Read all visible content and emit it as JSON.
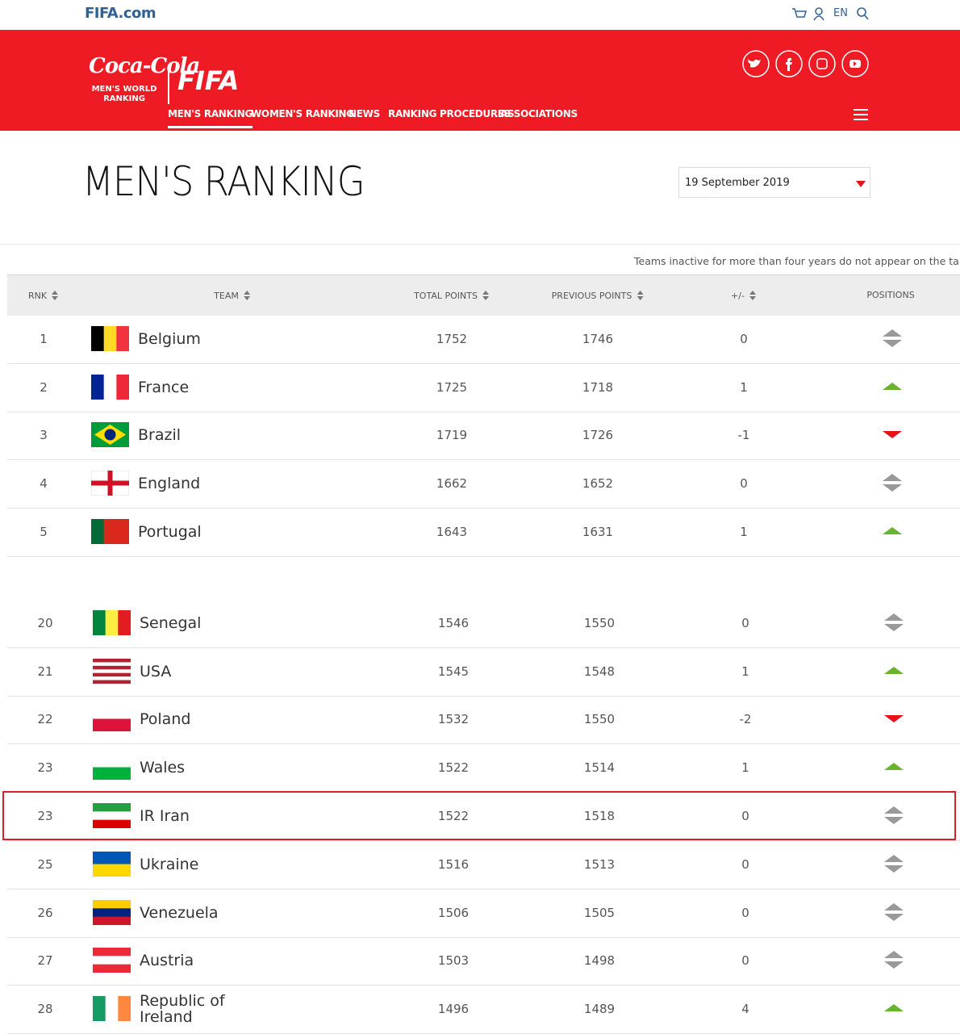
{
  "header": {
    "site": "FIFA.com",
    "language": "EN"
  },
  "banner": {
    "sponsor": "Coca-Cola",
    "sponsor_sub": "MEN'S WORLD RANKING",
    "brand": "FIFA",
    "nav": [
      "MEN'S RANKING",
      "WOMEN'S RANKING",
      "NEWS",
      "RANKING PROCEDURES",
      "ASSOCIATIONS"
    ],
    "active_nav": 0
  },
  "title": "MEN'S RANKING",
  "date": "19 September 2019",
  "note": "Teams inactive for more than four years do not appear on the table",
  "table": {
    "columns": [
      "RNK",
      "TEAM",
      "TOTAL POINTS",
      "PREVIOUS POINTS",
      "+/-",
      "POSITIONS"
    ],
    "groups": [
      [
        {
          "rank": 1,
          "team": "Belgium",
          "total": 1752,
          "previous": 1746,
          "change": 0,
          "flag": {
            "dir": "v",
            "colors": [
              "#000000",
              "#fdda24",
              "#ef3340"
            ]
          }
        },
        {
          "rank": 2,
          "team": "France",
          "total": 1725,
          "previous": 1718,
          "change": 1,
          "flag": {
            "dir": "v",
            "colors": [
              "#002395",
              "#ffffff",
              "#ed2939"
            ]
          }
        },
        {
          "rank": 3,
          "team": "Brazil",
          "total": 1719,
          "previous": 1726,
          "change": -1,
          "flag": {
            "dir": "diamond",
            "colors": [
              "#009c3b",
              "#ffdf00",
              "#002776"
            ]
          }
        },
        {
          "rank": 4,
          "team": "England",
          "total": 1662,
          "previous": 1652,
          "change": 0,
          "flag": {
            "dir": "cross",
            "colors": [
              "#ffffff",
              "#ce1124"
            ]
          }
        },
        {
          "rank": 5,
          "team": "Portugal",
          "total": 1643,
          "previous": 1631,
          "change": 1,
          "flag": {
            "dir": "v",
            "colors": [
              "#046a38",
              "#da291c",
              "#da291c"
            ]
          }
        }
      ],
      [
        {
          "rank": 20,
          "team": "Senegal",
          "total": 1546,
          "previous": 1550,
          "change": 0,
          "flag": {
            "dir": "v",
            "colors": [
              "#00853f",
              "#fdef42",
              "#e31b23"
            ]
          }
        },
        {
          "rank": 21,
          "team": "USA",
          "total": 1545,
          "previous": 1548,
          "change": 1,
          "flag": {
            "dir": "h",
            "colors": [
              "#b22234",
              "#ffffff",
              "#b22234",
              "#ffffff",
              "#b22234",
              "#ffffff",
              "#b22234"
            ]
          }
        },
        {
          "rank": 22,
          "team": "Poland",
          "total": 1532,
          "previous": 1550,
          "change": -2,
          "flag": {
            "dir": "h",
            "colors": [
              "#ffffff",
              "#dc143c"
            ]
          }
        },
        {
          "rank": 23,
          "team": "Wales",
          "total": 1522,
          "previous": 1514,
          "change": 1,
          "flag": {
            "dir": "h",
            "colors": [
              "#ffffff",
              "#00b140"
            ]
          }
        },
        {
          "rank": 23,
          "team": "IR Iran",
          "total": 1522,
          "previous": 1518,
          "change": 0,
          "highlighted": true,
          "flag": {
            "dir": "h",
            "colors": [
              "#239f40",
              "#ffffff",
              "#da0000"
            ]
          }
        },
        {
          "rank": 25,
          "team": "Ukraine",
          "total": 1516,
          "previous": 1513,
          "change": 0,
          "flag": {
            "dir": "h",
            "colors": [
              "#0057b7",
              "#ffd700"
            ]
          }
        },
        {
          "rank": 26,
          "team": "Venezuela",
          "total": 1506,
          "previous": 1505,
          "change": 0,
          "flag": {
            "dir": "h",
            "colors": [
              "#ffcc00",
              "#00247d",
              "#cf142b"
            ]
          }
        },
        {
          "rank": 27,
          "team": "Austria",
          "total": 1503,
          "previous": 1498,
          "change": 0,
          "flag": {
            "dir": "h",
            "colors": [
              "#ed2939",
              "#ffffff",
              "#ed2939"
            ]
          }
        },
        {
          "rank": 28,
          "team": "Republic of Ireland",
          "total": 1496,
          "previous": 1489,
          "change": 4,
          "flag": {
            "dir": "v",
            "colors": [
              "#169b62",
              "#ffffff",
              "#ff883e"
            ]
          }
        }
      ]
    ]
  }
}
